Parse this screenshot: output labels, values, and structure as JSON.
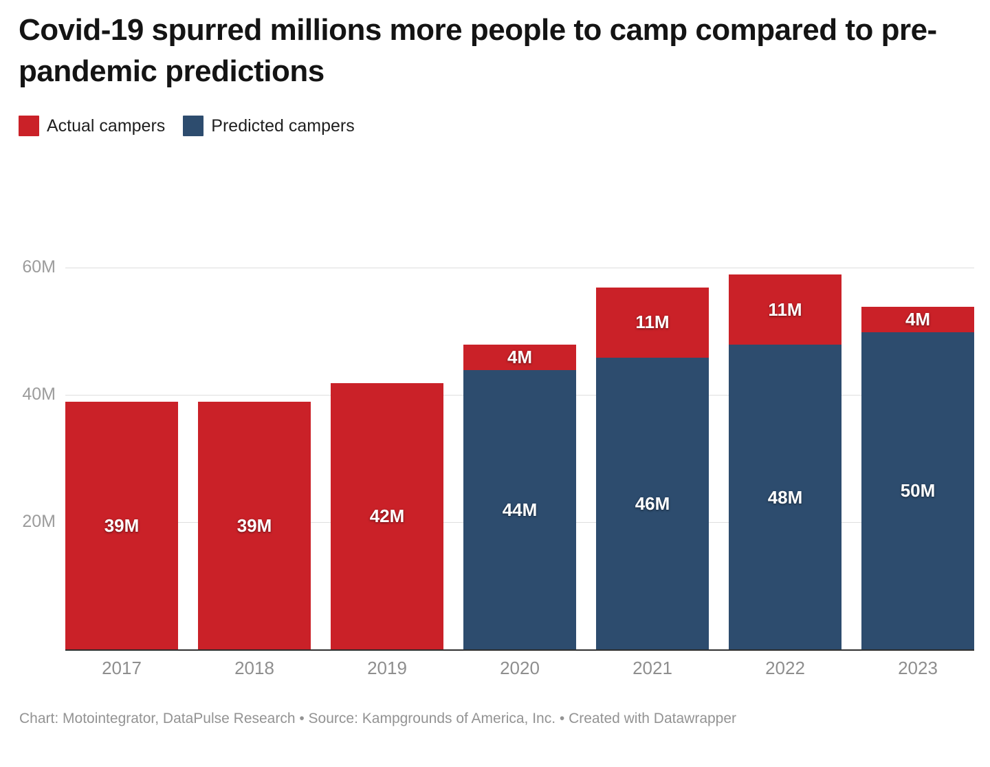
{
  "title": "Covid-19 spurred millions more people to camp compared to pre-pandemic predictions",
  "legend": {
    "items": [
      {
        "label": "Actual campers",
        "color": "#ca2128",
        "series": "actual"
      },
      {
        "label": "Predicted campers",
        "color": "#2d4c6e",
        "series": "predicted"
      }
    ]
  },
  "footer": "Chart: Motointegrator, DataPulse Research • Source: Kampgrounds of America, Inc. • Created with Datawrapper",
  "chart_data": {
    "type": "bar",
    "stacked": true,
    "grid": true,
    "legend_position": "top-left",
    "xlabel": "",
    "ylabel": "",
    "ylim": [
      0,
      60
    ],
    "yticks": [
      {
        "value": 20,
        "label": "20M"
      },
      {
        "value": 40,
        "label": "40M"
      },
      {
        "value": 60,
        "label": "60M"
      }
    ],
    "colors": {
      "actual": "#ca2128",
      "predicted": "#2d4c6e"
    },
    "categories": [
      "2017",
      "2018",
      "2019",
      "2020",
      "2021",
      "2022",
      "2023"
    ],
    "bars": [
      {
        "category": "2017",
        "segments": [
          {
            "series": "actual",
            "value": 39,
            "label": "39M"
          }
        ]
      },
      {
        "category": "2018",
        "segments": [
          {
            "series": "actual",
            "value": 39,
            "label": "39M"
          }
        ]
      },
      {
        "category": "2019",
        "segments": [
          {
            "series": "actual",
            "value": 42,
            "label": "42M"
          }
        ]
      },
      {
        "category": "2020",
        "segments": [
          {
            "series": "predicted",
            "value": 44,
            "label": "44M"
          },
          {
            "series": "actual",
            "value": 4,
            "label": "4M"
          }
        ]
      },
      {
        "category": "2021",
        "segments": [
          {
            "series": "predicted",
            "value": 46,
            "label": "46M"
          },
          {
            "series": "actual",
            "value": 11,
            "label": "11M"
          }
        ]
      },
      {
        "category": "2022",
        "segments": [
          {
            "series": "predicted",
            "value": 48,
            "label": "48M"
          },
          {
            "series": "actual",
            "value": 11,
            "label": "11M"
          }
        ]
      },
      {
        "category": "2023",
        "segments": [
          {
            "series": "predicted",
            "value": 50,
            "label": "50M"
          },
          {
            "series": "actual",
            "value": 4,
            "label": "4M"
          }
        ]
      }
    ]
  }
}
